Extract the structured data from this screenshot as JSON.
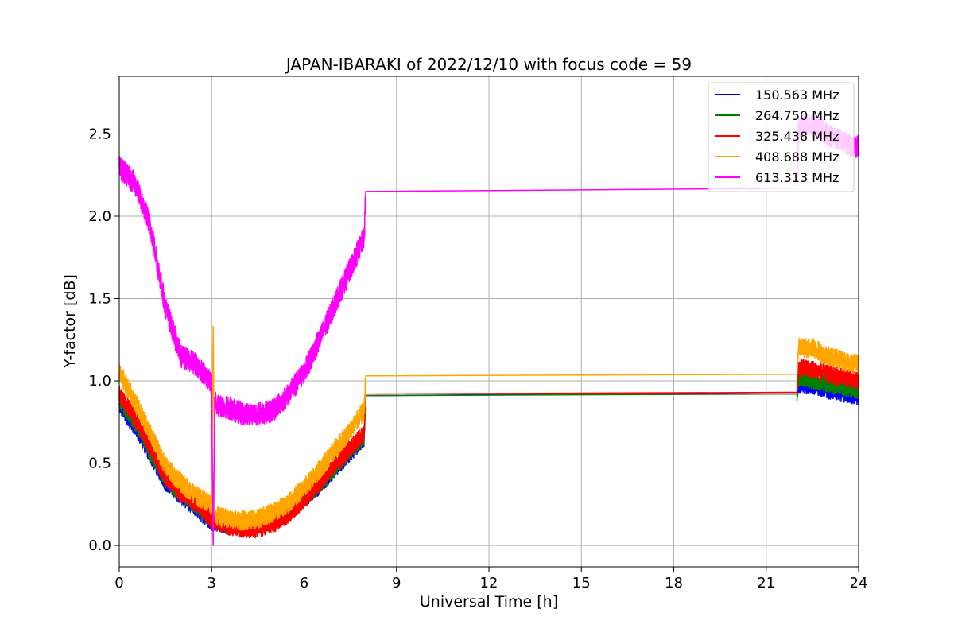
{
  "chart_data": {
    "type": "line",
    "title": "JAPAN-IBARAKI of 2022/12/10 with focus code = 59",
    "xlabel": "Universal Time [h]",
    "ylabel": "Y-factor [dB]",
    "xlim": [
      0,
      24
    ],
    "ylim": [
      -0.13,
      2.85
    ],
    "xticks": [
      0,
      3,
      6,
      9,
      12,
      15,
      18,
      21,
      24
    ],
    "yticks": [
      0.0,
      0.5,
      1.0,
      1.5,
      2.0,
      2.5
    ],
    "xtick_labels": [
      "0",
      "3",
      "6",
      "9",
      "12",
      "15",
      "18",
      "21",
      "24"
    ],
    "ytick_labels": [
      "0.0",
      "0.5",
      "1.0",
      "1.5",
      "2.0",
      "2.5"
    ],
    "grid": true,
    "legend_position": "top-right",
    "noise_until": 8.0,
    "noise_from": 22.0,
    "series": [
      {
        "name": "150.563 MHz",
        "color": "#0000ff",
        "noise": 0.05,
        "x": [
          0,
          0.5,
          1.0,
          1.5,
          2.0,
          2.5,
          3.0,
          3.5,
          4.0,
          4.5,
          5.0,
          5.5,
          6.0,
          6.5,
          7.0,
          7.5,
          7.95,
          8.0,
          22.0,
          22.05,
          22.5,
          23.0,
          23.5,
          24.0
        ],
        "values": [
          0.85,
          0.72,
          0.55,
          0.38,
          0.3,
          0.22,
          0.14,
          0.12,
          0.12,
          0.13,
          0.14,
          0.2,
          0.28,
          0.36,
          0.46,
          0.56,
          0.65,
          0.91,
          0.93,
          0.98,
          0.97,
          0.94,
          0.92,
          0.9
        ]
      },
      {
        "name": "264.750 MHz",
        "color": "#008000",
        "noise": 0.05,
        "x": [
          0,
          0.5,
          1.0,
          1.5,
          2.0,
          2.5,
          3.0,
          3.5,
          4.0,
          4.5,
          5.0,
          5.5,
          6.0,
          6.5,
          7.0,
          7.5,
          7.95,
          8.0,
          22.0,
          22.05,
          22.5,
          23.0,
          23.5,
          24.0
        ],
        "values": [
          0.88,
          0.75,
          0.57,
          0.4,
          0.31,
          0.24,
          0.15,
          0.13,
          0.12,
          0.12,
          0.14,
          0.2,
          0.28,
          0.37,
          0.47,
          0.57,
          0.66,
          0.91,
          0.92,
          1.02,
          1.0,
          0.98,
          0.96,
          0.94
        ]
      },
      {
        "name": "325.438 MHz",
        "color": "#ff0000",
        "noise": 0.055,
        "x": [
          0,
          0.5,
          1.0,
          1.5,
          2.0,
          2.5,
          3.0,
          3.5,
          4.0,
          4.5,
          5.0,
          5.5,
          6.0,
          6.5,
          7.0,
          7.5,
          7.95,
          8.0,
          22.0,
          22.05,
          22.5,
          23.0,
          23.5,
          24.0
        ],
        "values": [
          0.92,
          0.78,
          0.6,
          0.42,
          0.32,
          0.25,
          0.16,
          0.12,
          0.1,
          0.1,
          0.13,
          0.19,
          0.28,
          0.38,
          0.49,
          0.59,
          0.68,
          0.92,
          0.93,
          1.08,
          1.07,
          1.04,
          1.02,
          1.0
        ]
      },
      {
        "name": "408.688 MHz",
        "color": "#ffa500",
        "noise": 0.06,
        "x": [
          0,
          0.5,
          1.0,
          1.5,
          2.0,
          2.5,
          3.0,
          3.05,
          3.1,
          3.15,
          3.5,
          4.0,
          4.5,
          5.0,
          5.5,
          6.0,
          6.5,
          7.0,
          7.5,
          7.95,
          8.0,
          22.0,
          22.05,
          22.5,
          23.0,
          23.5,
          24.0
        ],
        "values": [
          1.05,
          0.88,
          0.68,
          0.48,
          0.38,
          0.3,
          0.25,
          1.33,
          0.2,
          0.18,
          0.16,
          0.15,
          0.16,
          0.2,
          0.26,
          0.35,
          0.46,
          0.58,
          0.7,
          0.82,
          1.03,
          1.04,
          1.2,
          1.2,
          1.15,
          1.12,
          1.1
        ]
      },
      {
        "name": "613.313 MHz",
        "color": "#ff00ff",
        "noise": 0.07,
        "x": [
          0,
          0.5,
          1.0,
          1.5,
          2.0,
          2.5,
          3.0,
          3.05,
          3.1,
          3.2,
          3.5,
          4.0,
          4.5,
          5.0,
          5.5,
          6.0,
          6.5,
          7.0,
          7.5,
          7.95,
          8.0,
          22.0,
          22.05,
          22.5,
          23.0,
          23.5,
          24.0
        ],
        "values": [
          2.3,
          2.2,
          1.95,
          1.45,
          1.15,
          1.1,
          0.98,
          0.0,
          0.9,
          0.85,
          0.84,
          0.8,
          0.8,
          0.82,
          0.92,
          1.05,
          1.25,
          1.47,
          1.68,
          1.87,
          2.15,
          2.17,
          2.55,
          2.55,
          2.5,
          2.45,
          2.42
        ]
      }
    ]
  }
}
